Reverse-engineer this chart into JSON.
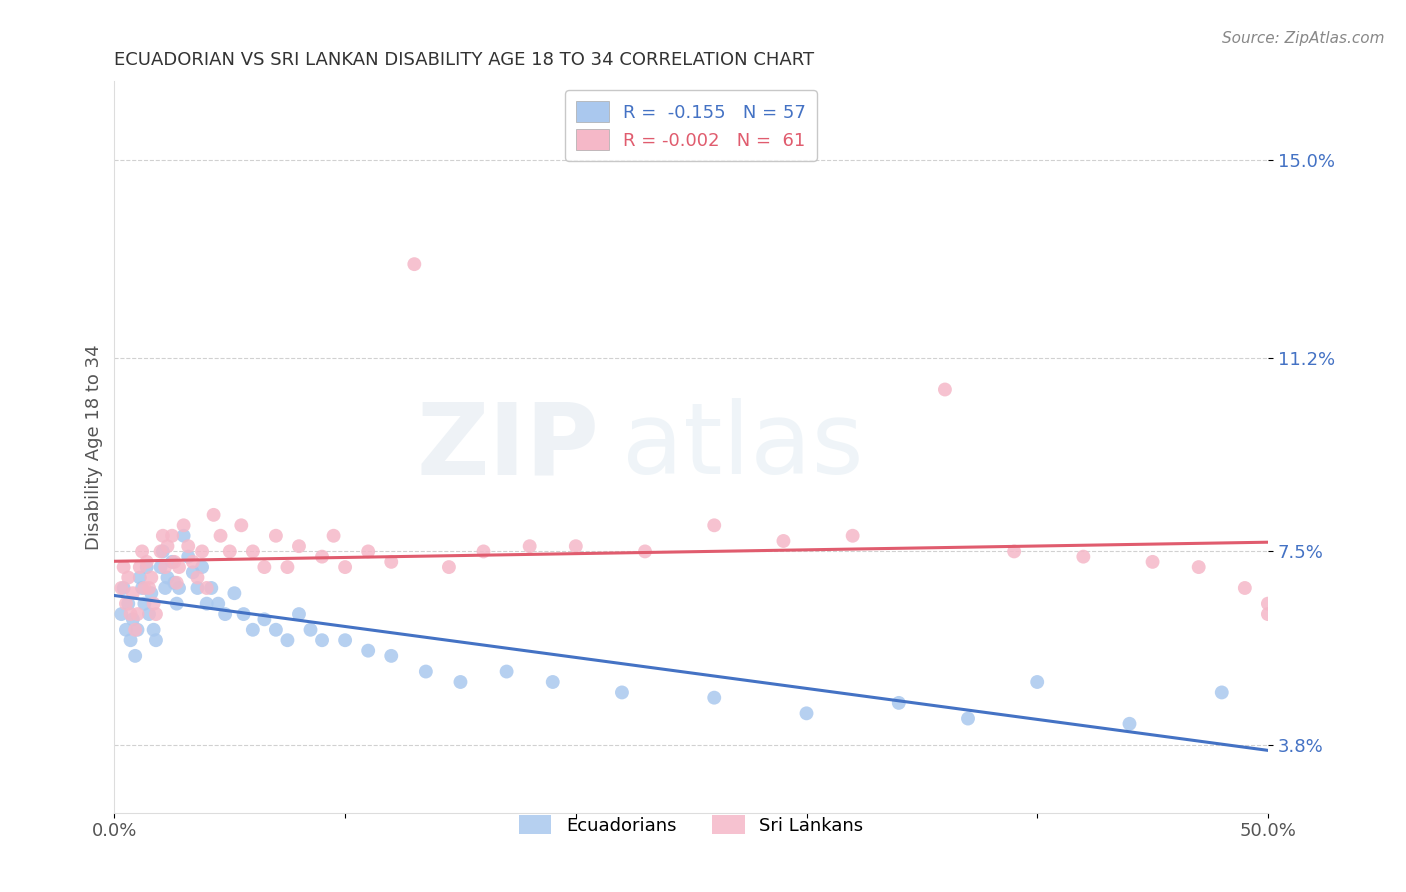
{
  "title": "ECUADORIAN VS SRI LANKAN DISABILITY AGE 18 TO 34 CORRELATION CHART",
  "source_text": "Source: ZipAtlas.com",
  "ylabel": "Disability Age 18 to 34",
  "xlim": [
    0.0,
    0.5
  ],
  "ylim": [
    0.025,
    0.165
  ],
  "ytick_positions": [
    0.038,
    0.075,
    0.112,
    0.15
  ],
  "ytick_labels": [
    "3.8%",
    "7.5%",
    "11.2%",
    "15.0%"
  ],
  "grid_color": "#cccccc",
  "background_color": "#ffffff",
  "ecuadorian_color": "#aac8ee",
  "srilanka_color": "#f5b8c8",
  "ecuadorian_line_color": "#4472c4",
  "srilanka_line_color": "#e05c6e",
  "ecuadorian_x": [
    0.003,
    0.004,
    0.005,
    0.006,
    0.007,
    0.008,
    0.009,
    0.01,
    0.011,
    0.012,
    0.013,
    0.014,
    0.015,
    0.016,
    0.017,
    0.018,
    0.02,
    0.021,
    0.022,
    0.023,
    0.025,
    0.026,
    0.027,
    0.028,
    0.03,
    0.032,
    0.034,
    0.036,
    0.038,
    0.04,
    0.042,
    0.045,
    0.048,
    0.052,
    0.056,
    0.06,
    0.065,
    0.07,
    0.075,
    0.08,
    0.085,
    0.09,
    0.1,
    0.11,
    0.12,
    0.135,
    0.15,
    0.17,
    0.19,
    0.22,
    0.26,
    0.3,
    0.34,
    0.37,
    0.4,
    0.44,
    0.48
  ],
  "ecuadorian_y": [
    0.063,
    0.068,
    0.06,
    0.065,
    0.058,
    0.062,
    0.055,
    0.06,
    0.07,
    0.068,
    0.065,
    0.072,
    0.063,
    0.067,
    0.06,
    0.058,
    0.072,
    0.075,
    0.068,
    0.07,
    0.073,
    0.069,
    0.065,
    0.068,
    0.078,
    0.074,
    0.071,
    0.068,
    0.072,
    0.065,
    0.068,
    0.065,
    0.063,
    0.067,
    0.063,
    0.06,
    0.062,
    0.06,
    0.058,
    0.063,
    0.06,
    0.058,
    0.058,
    0.056,
    0.055,
    0.052,
    0.05,
    0.052,
    0.05,
    0.048,
    0.047,
    0.044,
    0.046,
    0.043,
    0.05,
    0.042,
    0.048
  ],
  "srilanka_x": [
    0.003,
    0.004,
    0.005,
    0.006,
    0.007,
    0.008,
    0.009,
    0.01,
    0.011,
    0.012,
    0.013,
    0.014,
    0.015,
    0.016,
    0.017,
    0.018,
    0.02,
    0.021,
    0.022,
    0.023,
    0.025,
    0.026,
    0.027,
    0.028,
    0.03,
    0.032,
    0.034,
    0.036,
    0.038,
    0.04,
    0.043,
    0.046,
    0.05,
    0.055,
    0.06,
    0.065,
    0.07,
    0.075,
    0.08,
    0.09,
    0.095,
    0.1,
    0.11,
    0.12,
    0.13,
    0.145,
    0.16,
    0.18,
    0.2,
    0.23,
    0.26,
    0.29,
    0.32,
    0.36,
    0.39,
    0.42,
    0.45,
    0.47,
    0.49,
    0.5,
    0.5
  ],
  "srilanka_y": [
    0.068,
    0.072,
    0.065,
    0.07,
    0.063,
    0.067,
    0.06,
    0.063,
    0.072,
    0.075,
    0.068,
    0.073,
    0.068,
    0.07,
    0.065,
    0.063,
    0.075,
    0.078,
    0.072,
    0.076,
    0.078,
    0.073,
    0.069,
    0.072,
    0.08,
    0.076,
    0.073,
    0.07,
    0.075,
    0.068,
    0.082,
    0.078,
    0.075,
    0.08,
    0.075,
    0.072,
    0.078,
    0.072,
    0.076,
    0.074,
    0.078,
    0.072,
    0.075,
    0.073,
    0.13,
    0.072,
    0.075,
    0.076,
    0.076,
    0.075,
    0.08,
    0.077,
    0.078,
    0.106,
    0.075,
    0.074,
    0.073,
    0.072,
    0.068,
    0.065,
    0.063
  ],
  "legend_label_ecu": "R =  -0.155   N = 57",
  "legend_label_sri": "R = -0.002   N =  61",
  "watermark_zip": "ZIP",
  "watermark_atlas": "atlas"
}
